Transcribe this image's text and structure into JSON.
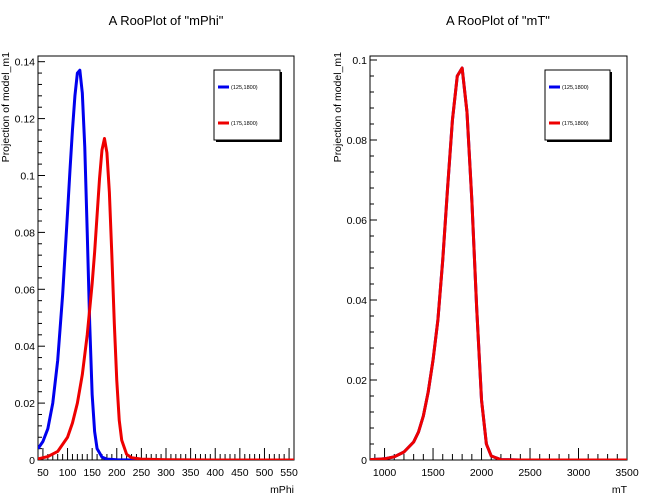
{
  "chart_data": [
    {
      "type": "line",
      "title": "A RooPlot of \"mPhi\"",
      "xlabel": "mPhi",
      "ylabel": "Projection of model_m1",
      "xlim": [
        40,
        560
      ],
      "ylim": [
        0,
        0.142
      ],
      "x_ticks": [
        50,
        100,
        150,
        200,
        250,
        300,
        350,
        400,
        450,
        500,
        550
      ],
      "y_ticks": [
        0,
        0.02,
        0.04,
        0.06,
        0.08,
        0.1,
        0.12,
        0.14
      ],
      "y_tick_labels": [
        "0",
        "0.02",
        "0.04",
        "0.06",
        "0.08",
        "0.1",
        "0.12",
        "0.14"
      ],
      "legend_position": "top-right",
      "series": [
        {
          "name": "(125,1800)",
          "color": "#0000ee",
          "x": [
            40,
            50,
            60,
            70,
            80,
            90,
            100,
            105,
            110,
            115,
            120,
            125,
            130,
            135,
            140,
            145,
            150,
            155,
            160,
            170,
            180,
            200,
            230,
            260
          ],
          "y": [
            0.004,
            0.0065,
            0.011,
            0.02,
            0.035,
            0.058,
            0.087,
            0.102,
            0.116,
            0.128,
            0.136,
            0.137,
            0.129,
            0.11,
            0.08,
            0.048,
            0.023,
            0.01,
            0.004,
            0.001,
            0.0003,
            0.0001,
            0.0,
            0.0
          ]
        },
        {
          "name": "(175,1800)",
          "color": "#ee0000",
          "x": [
            40,
            60,
            80,
            100,
            110,
            120,
            130,
            140,
            150,
            155,
            160,
            165,
            170,
            175,
            180,
            185,
            190,
            195,
            200,
            205,
            210,
            220,
            230,
            250,
            300,
            400,
            560
          ],
          "y": [
            0.0004,
            0.0012,
            0.003,
            0.008,
            0.013,
            0.02,
            0.03,
            0.044,
            0.062,
            0.073,
            0.086,
            0.099,
            0.109,
            0.113,
            0.108,
            0.094,
            0.072,
            0.048,
            0.028,
            0.014,
            0.007,
            0.002,
            0.0008,
            0.0003,
            0.0001,
            0.0,
            0.0
          ]
        }
      ],
      "minor_ticks": [
        60,
        70,
        80,
        90,
        110,
        120,
        130,
        140,
        160,
        170,
        180,
        190,
        210,
        220,
        230,
        240,
        260,
        270,
        280,
        290,
        310,
        320,
        330,
        340,
        360,
        370,
        380,
        390,
        410,
        420,
        430,
        440,
        460,
        470,
        480,
        490,
        510,
        520,
        530,
        540
      ]
    },
    {
      "type": "line",
      "title": "A RooPlot of \"mT\"",
      "xlabel": "mT",
      "ylabel": "Projection of model_m1",
      "xlim": [
        850,
        3500
      ],
      "ylim": [
        0,
        0.101
      ],
      "x_ticks": [
        1000,
        1500,
        2000,
        2500,
        3000,
        3500
      ],
      "y_ticks": [
        0,
        0.02,
        0.04,
        0.06,
        0.08,
        0.1
      ],
      "y_tick_labels": [
        "0",
        "0.02",
        "0.04",
        "0.06",
        "0.08",
        "0.1"
      ],
      "legend_position": "top-right",
      "series": [
        {
          "name": "(125,1800)",
          "color": "#0000ee",
          "x": [
            850,
            1000,
            1100,
            1200,
            1300,
            1350,
            1400,
            1450,
            1500,
            1550,
            1600,
            1650,
            1700,
            1750,
            1800,
            1850,
            1900,
            1950,
            2000,
            2050,
            2100,
            2200,
            2400,
            3500
          ],
          "y": [
            0.0001,
            0.0003,
            0.0008,
            0.002,
            0.0045,
            0.007,
            0.011,
            0.017,
            0.025,
            0.035,
            0.05,
            0.068,
            0.085,
            0.096,
            0.098,
            0.087,
            0.065,
            0.038,
            0.015,
            0.004,
            0.001,
            0.0001,
            0.0,
            0.0
          ]
        },
        {
          "name": "(175,1800)",
          "color": "#ee0000",
          "x": [
            850,
            1000,
            1100,
            1200,
            1300,
            1350,
            1400,
            1450,
            1500,
            1550,
            1600,
            1650,
            1700,
            1750,
            1800,
            1850,
            1900,
            1950,
            2000,
            2050,
            2100,
            2200,
            2400,
            3500
          ],
          "y": [
            0.0001,
            0.0003,
            0.0008,
            0.002,
            0.0045,
            0.007,
            0.011,
            0.017,
            0.025,
            0.035,
            0.05,
            0.068,
            0.085,
            0.096,
            0.098,
            0.087,
            0.065,
            0.038,
            0.015,
            0.004,
            0.001,
            0.0001,
            0.0,
            0.0
          ]
        }
      ],
      "minor_ticks": [
        900,
        1100,
        1200,
        1300,
        1400,
        1600,
        1700,
        1800,
        1900,
        2100,
        2200,
        2300,
        2400,
        2600,
        2700,
        2800,
        2900,
        3100,
        3200,
        3300,
        3400
      ]
    }
  ]
}
